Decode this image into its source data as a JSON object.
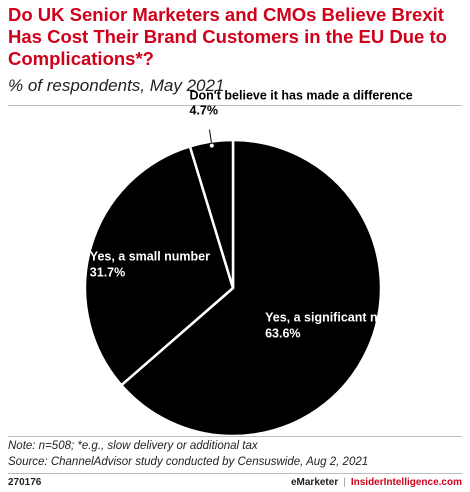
{
  "header": {
    "title": "Do UK Senior Marketers and CMOs Believe Brexit Has Cost Their Brand Customers in the EU Due to Complications*?",
    "subtitle": "% of respondents, May 2021"
  },
  "chart_data": {
    "type": "pie",
    "title": "Do UK Senior Marketers and CMOs Believe Brexit Has Cost Their Brand Customers in the EU Due to Complications*?",
    "subtitle": "% of respondents, May 2021",
    "unit": "%",
    "slices": [
      {
        "label": "Yes, a significant number",
        "value": 63.6,
        "value_label": "63.6%"
      },
      {
        "label": "Yes, a small number",
        "value": 31.7,
        "value_label": "31.7%"
      },
      {
        "label": "Don't believe it has made a difference",
        "value": 4.7,
        "value_label": "4.7%"
      }
    ],
    "colors": {
      "slice_fill": "#000000",
      "slice_border": "#ffffff",
      "label_text": "#ffffff"
    }
  },
  "footer": {
    "note": "Note: n=508; *e.g., slow delivery or additional tax",
    "source": "Source: ChannelAdvisor study conducted by Censuswide, Aug 2, 2021",
    "chart_id": "270176",
    "brand": "eMarketer",
    "brand_sep": "|",
    "brand_site": "InsiderIntelligence.com"
  },
  "colors": {
    "title": "#d0021b",
    "accent": "#d0021b"
  }
}
